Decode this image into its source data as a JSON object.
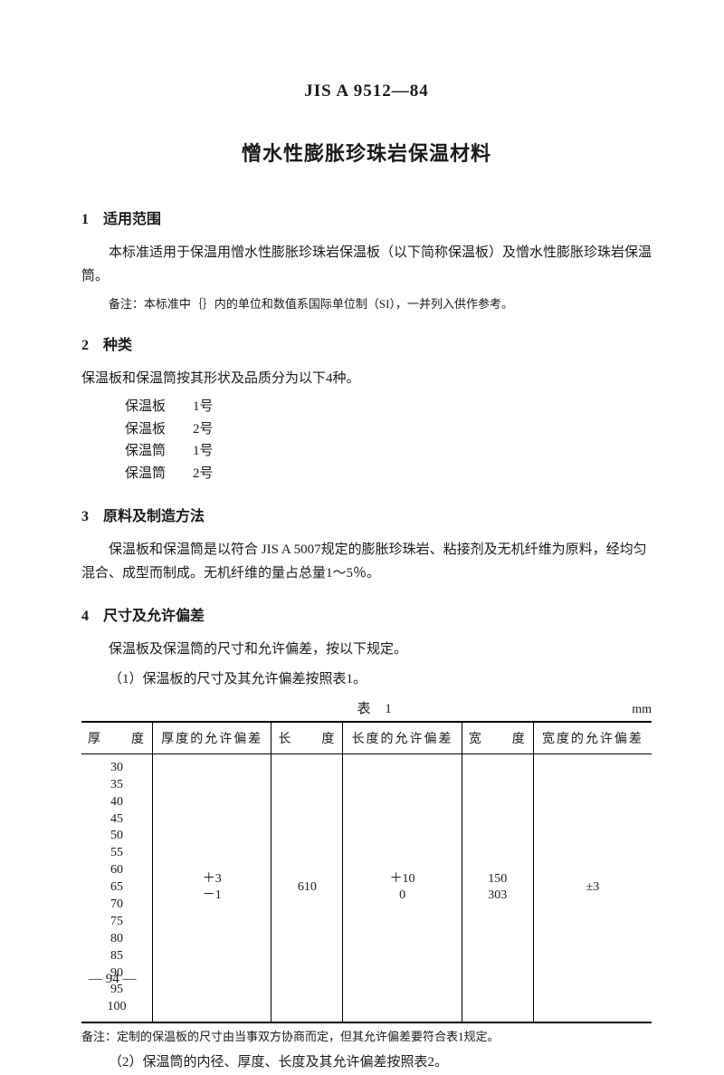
{
  "standard_code": "JIS A 9512—84",
  "title": "憎水性膨胀珍珠岩保温材料",
  "sections": {
    "s1": {
      "heading": "1　适用范围",
      "para": "本标准适用于保温用憎水性膨胀珍珠岩保温板（以下简称保温板）及憎水性膨胀珍珠岩保温筒。",
      "note": "备注：本标准中｛｝内的单位和数值系国际单位制（SI），一并列入供作参考。"
    },
    "s2": {
      "heading": "2　种类",
      "intro": "保温板和保温筒按其形状及品质分为以下4种。",
      "types": [
        {
          "name": "保温板",
          "no": "1号"
        },
        {
          "name": "保温板",
          "no": "2号"
        },
        {
          "name": "保温筒",
          "no": "1号"
        },
        {
          "name": "保温筒",
          "no": "2号"
        }
      ]
    },
    "s3": {
      "heading": "3　原料及制造方法",
      "para": "保温板和保温筒是以符合 JIS A 5007规定的膨胀珍珠岩、粘接剂及无机纤维为原料，经均匀混合、成型而制成。无机纤维的量占总量1～5％。"
    },
    "s4": {
      "heading": "4　尺寸及允许偏差",
      "p1": "保温板及保温筒的尺寸和允许偏差，按以下规定。",
      "p2": "（1）保温板的尺寸及其允许偏差按照表1。",
      "table": {
        "caption": "表 1",
        "unit": "mm",
        "headers": [
          "厚　　度",
          "厚度的允许偏差",
          "长　　度",
          "长度的允许偏差",
          "宽　　度",
          "宽度的允许偏差"
        ],
        "thickness_values": "30\n35\n40\n45\n50\n55\n60\n65\n70\n75\n80\n85\n90\n95\n100",
        "thick_tol_top": "＋3",
        "thick_tol_bot": "－1",
        "length": "610",
        "len_tol_top": "＋10",
        "len_tol_bot": "0",
        "width_top": "150",
        "width_bot": "303",
        "width_tol": "±3"
      },
      "footnote": "备注：定制的保温板的尺寸由当事双方协商而定，但其允许偏差要符合表1规定。",
      "p3": "（2）保温筒的内径、厚度、长度及其允许偏差按照表2。"
    }
  },
  "page_number": "— 94 —"
}
